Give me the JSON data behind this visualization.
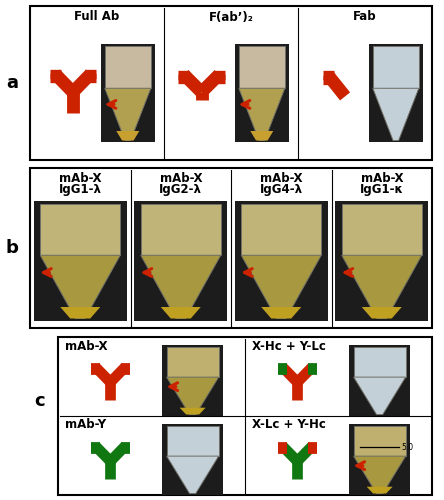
{
  "panel_a_labels": [
    "Full Ab",
    "F(ab’)₂",
    "Fab"
  ],
  "panel_b_labels": [
    "mAb-X\nIgG1-λ",
    "mAb-X\nIgG2-λ",
    "mAb-X\nIgG4-λ",
    "mAb-X\nIgG1-κ"
  ],
  "panel_c_labels": [
    "mAb-X",
    "X-Hc + Y-Lc",
    "mAb-Y",
    "X-Lc + Y-Hc"
  ],
  "panel_label_a": "a",
  "panel_label_b": "b",
  "panel_label_c": "c",
  "red_color": "#CC2200",
  "green_color": "#117711",
  "arrow_color": "#CC2200",
  "bg_color": "#FFFFFF",
  "panel_fontsize": 13,
  "label_fontsize": 8.5
}
